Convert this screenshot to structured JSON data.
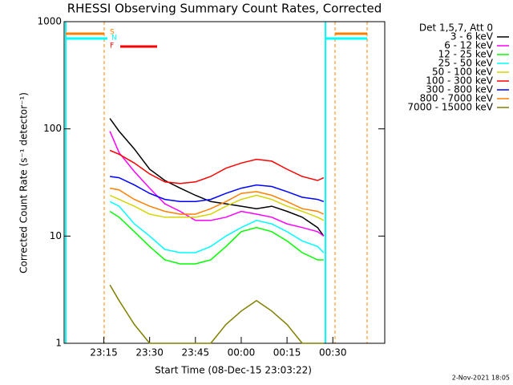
{
  "chart_data": {
    "type": "line",
    "title": "RHESSI Observing Summary Count Rates, Corrected",
    "x_label": "Start Time (08-Dec-15 23:03:22)",
    "y_label": "Corrected Count Rate (s⁻¹ detector⁻¹)",
    "legend_title": "Det 1,5,7, Att 0",
    "footer": "2-Nov-2021 18:05",
    "flags": [
      "S",
      "N",
      "F"
    ],
    "log_y": true,
    "xlim": [
      2,
      107
    ],
    "xticks": [
      {
        "value": 15,
        "label": "23:15"
      },
      {
        "value": 30,
        "label": "23:30"
      },
      {
        "value": 45,
        "label": "23:45"
      },
      {
        "value": 60,
        "label": "00:00"
      },
      {
        "value": 75,
        "label": "00:15"
      },
      {
        "value": 90,
        "label": "00:30"
      }
    ],
    "ylim": [
      1,
      1000
    ],
    "yticks": [
      1,
      10,
      100,
      1000
    ],
    "x": [
      17,
      20,
      25,
      30,
      35,
      40,
      45,
      50,
      55,
      60,
      65,
      70,
      75,
      80,
      85,
      87
    ],
    "series": [
      {
        "name": "3 - 6 keV",
        "color": "#000000",
        "values": [
          125,
          95,
          65,
          42,
          33,
          28,
          24,
          21,
          20,
          19,
          18,
          19,
          17,
          15,
          12,
          10
        ]
      },
      {
        "name": "6 - 12 keV",
        "color": "#ff00ff",
        "values": [
          95,
          60,
          40,
          28,
          20,
          17,
          14,
          14,
          15,
          17,
          16,
          15,
          13,
          12,
          11,
          10
        ]
      },
      {
        "name": "12 - 25 keV",
        "color": "#00ff00",
        "values": [
          17,
          15,
          11,
          8,
          6,
          5.5,
          5.5,
          6,
          8,
          11,
          12,
          11,
          9,
          7,
          6,
          6
        ]
      },
      {
        "name": "25 - 50 keV",
        "color": "#00ffff",
        "values": [
          21,
          19,
          13,
          10,
          7.5,
          7,
          7,
          8,
          10,
          12,
          14,
          13,
          11,
          9,
          8,
          7
        ]
      },
      {
        "name": "50 - 100 keV",
        "color": "#d4d400",
        "values": [
          24,
          22,
          19,
          16,
          15,
          15,
          15,
          16,
          19,
          22,
          24,
          22,
          19,
          17,
          15,
          14
        ]
      },
      {
        "name": "100 - 300 keV",
        "color": "#ff0000",
        "values": [
          63,
          58,
          48,
          38,
          32,
          31,
          32,
          36,
          43,
          48,
          52,
          50,
          42,
          36,
          33,
          35
        ]
      },
      {
        "name": "300 - 800 keV",
        "color": "#0000ff",
        "values": [
          36,
          35,
          30,
          25,
          22,
          21,
          21,
          22,
          25,
          28,
          30,
          29,
          26,
          23,
          22,
          21
        ]
      },
      {
        "name": "800 - 7000 keV",
        "color": "#ff8000",
        "values": [
          28,
          27,
          22,
          19,
          17,
          16,
          16,
          18,
          21,
          25,
          26,
          24,
          21,
          18,
          17,
          16
        ]
      },
      {
        "name": "7000 - 15000 keV",
        "color": "#808000",
        "values": [
          3.5,
          2.5,
          1.5,
          1,
          1,
          1,
          1,
          1,
          1.5,
          2,
          2.5,
          2,
          1.5,
          1,
          1,
          1
        ]
      }
    ]
  }
}
